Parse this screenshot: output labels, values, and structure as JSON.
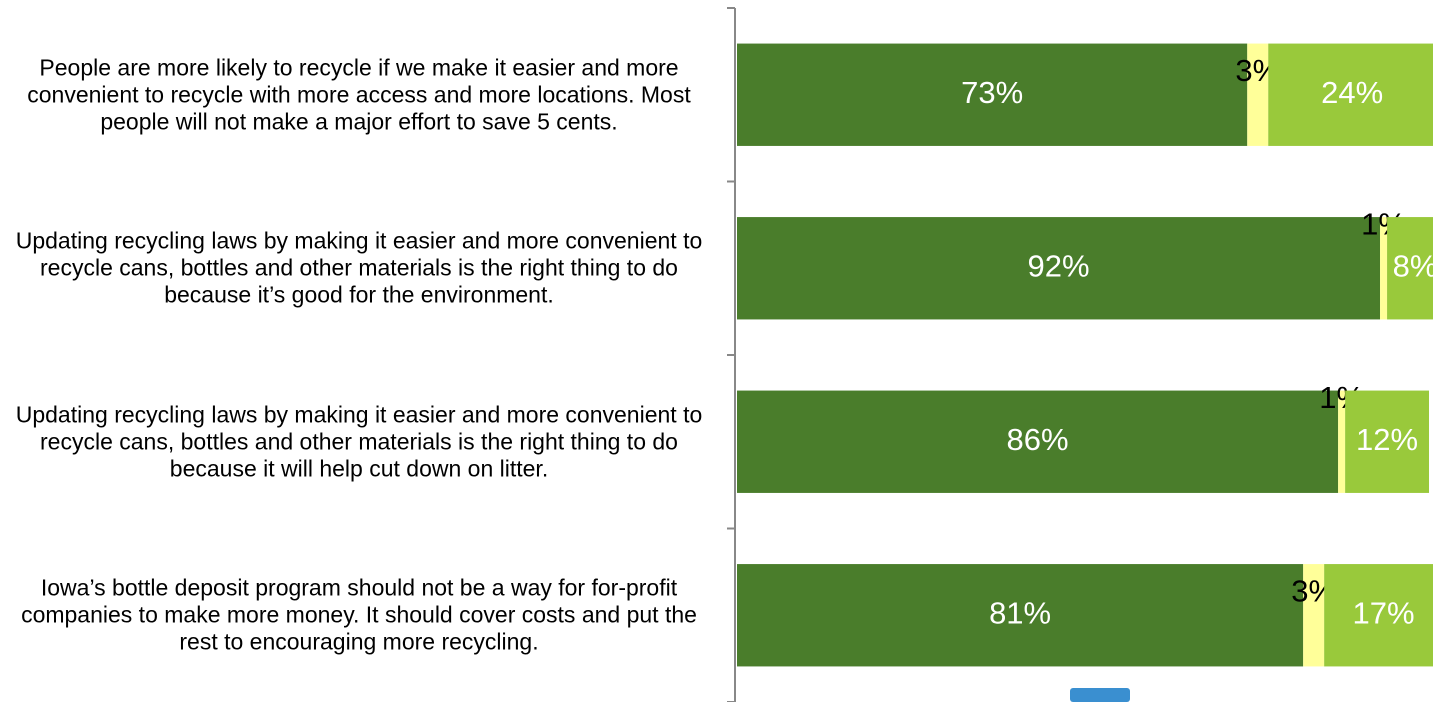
{
  "chart_data": {
    "type": "stacked-barh",
    "categories": [
      "People are more likely to recycle if we make it easier and more convenient to recycle with more access and more locations.  Most people will not make a major effort to save 5 cents.",
      "Updating recycling laws by making it easier and more convenient to recycle cans, bottles and other materials is the right thing to do because it’s good for the environment.",
      "Updating recycling laws by making it easier and more convenient to recycle cans, bottles and other materials is the right thing to do because it will help cut down on litter.",
      "Iowa’s bottle deposit program should not be a way for for-profit companies to make more money.  It should cover costs and put the rest to encouraging more recycling."
    ],
    "series": [
      {
        "color": "#4a7d2b",
        "label_color": "#ffffff",
        "values": [
          73,
          92,
          86,
          81
        ],
        "value_labels": [
          "73%",
          "92%",
          "86%",
          "81%"
        ]
      },
      {
        "color": "#ffff99",
        "label_color": "#000000",
        "values": [
          3,
          1,
          1,
          3
        ],
        "value_labels": [
          "3%",
          "1%",
          "1%",
          "3%"
        ]
      },
      {
        "color": "#99c93b",
        "label_color": "#ffffff",
        "values": [
          24,
          8,
          12,
          17
        ],
        "value_labels": [
          "24%",
          "8%",
          "12%",
          "17%"
        ]
      }
    ],
    "xlim": [
      0,
      100
    ]
  }
}
